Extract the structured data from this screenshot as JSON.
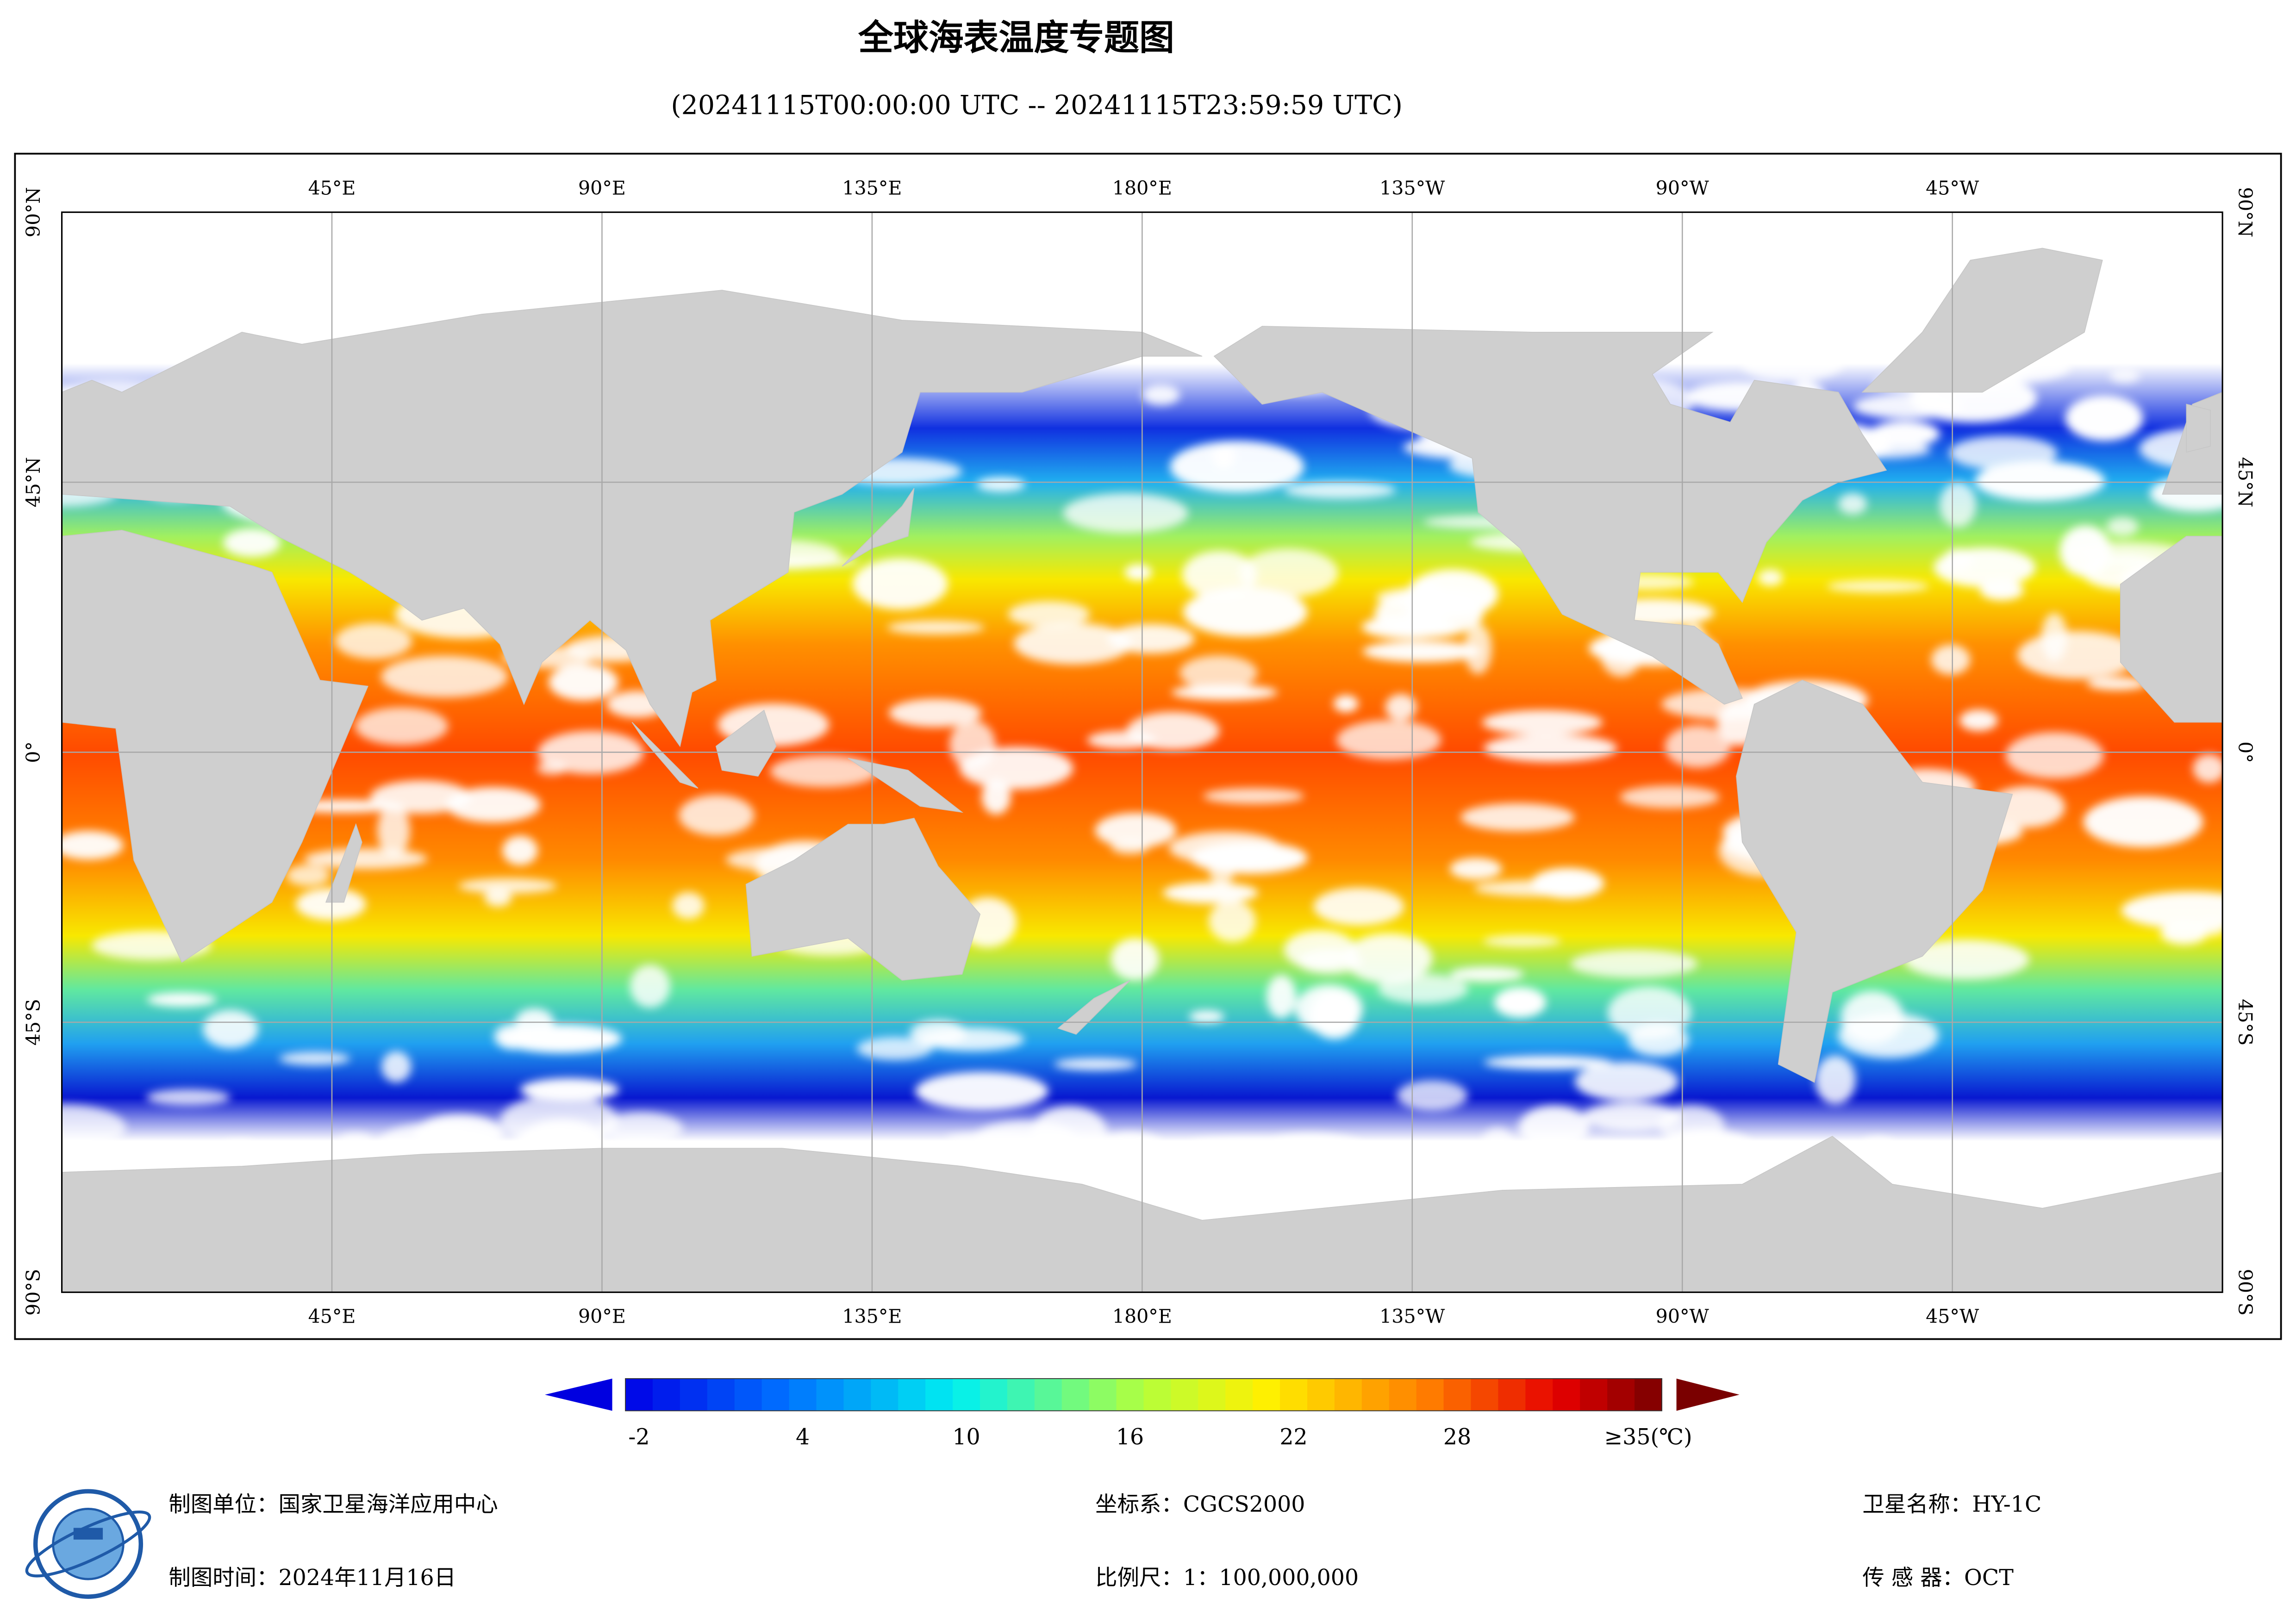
{
  "title": "全球海表温度专题图",
  "subtitle": "(20241115T00:00:00 UTC -- 20241115T23:59:59 UTC)",
  "map": {
    "lon_ticks": [
      {
        "value": 45,
        "label": "45°E"
      },
      {
        "value": 90,
        "label": "90°E"
      },
      {
        "value": 135,
        "label": "135°E"
      },
      {
        "value": 180,
        "label": "180°E"
      },
      {
        "value": -135,
        "label": "135°W"
      },
      {
        "value": -90,
        "label": "90°W"
      },
      {
        "value": -45,
        "label": "45°W"
      }
    ],
    "lat_ticks": [
      {
        "value": 90,
        "label": "90°N"
      },
      {
        "value": 45,
        "label": "45°N"
      },
      {
        "value": 0,
        "label": "0°"
      },
      {
        "value": -45,
        "label": "45°S"
      },
      {
        "value": -90,
        "label": "90°S"
      }
    ]
  },
  "colorbar": {
    "range": [
      -2.5,
      35.5
    ],
    "ticks": [
      -2,
      4,
      10,
      16,
      22,
      28,
      {
        "value": 35,
        "label": "≥35(℃)"
      }
    ]
  },
  "footer": {
    "producer": "制图单位：国家卫星海洋应用中心",
    "date": "制图时间：2024年11月16日",
    "crs": "坐标系：CGCS2000",
    "scale": "比例尺：1：100,000,000",
    "satellite": "卫星名称：HY-1C",
    "sensor": "传 感 器：OCT"
  }
}
